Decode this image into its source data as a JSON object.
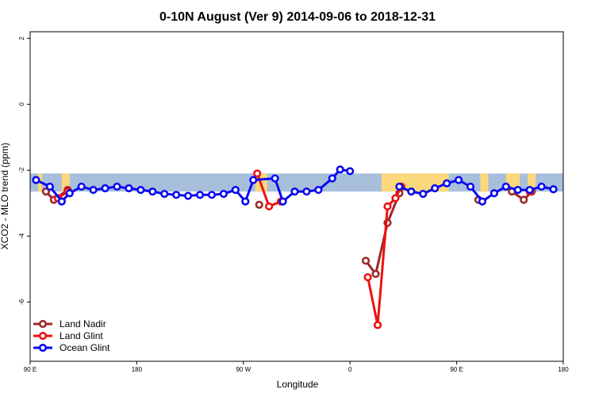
{
  "chart_data": {
    "type": "line",
    "title": "0-10N August (Ver 9)   2014-09-06 to 2018-12-31",
    "xlabel": "Longitude",
    "ylabel": "XCO2 - MLO trend (ppm)",
    "xlim": [
      -90,
      180
    ],
    "ylim": [
      -7.8,
      2.2
    ],
    "x_ticks": [
      {
        "value": -90,
        "label": "90 E"
      },
      {
        "value": -36,
        "label": "180"
      },
      {
        "value": 18,
        "label": "90 W"
      },
      {
        "value": 72,
        "label": "0"
      },
      {
        "value": 126,
        "label": "90 E"
      },
      {
        "value": 180,
        "label": "180"
      }
    ],
    "y_ticks": [
      {
        "value": 2,
        "label": "2"
      },
      {
        "value": 0,
        "label": "0"
      },
      {
        "value": -2,
        "label": "-2"
      },
      {
        "value": -4,
        "label": "-4"
      },
      {
        "value": -6,
        "label": "-6"
      }
    ],
    "band": {
      "y_range": [
        -2.65,
        -2.1
      ],
      "ocean_color": "#a8bfdc",
      "land_color": "#fcd87c"
    },
    "land_spans": [
      [
        -86,
        -84
      ],
      [
        -74,
        -70
      ],
      [
        24,
        30
      ],
      [
        88,
        122
      ],
      [
        138,
        142
      ],
      [
        151,
        158
      ],
      [
        162,
        166
      ]
    ],
    "legend_position": "bottom-left",
    "series": [
      {
        "name": "Land Nadir",
        "color": "#9b2a2a",
        "segments": [
          [
            [
              -82,
              -2.65
            ],
            [
              -78,
              -2.9
            ],
            [
              -71,
              -2.6
            ]
          ],
          [
            [
              26,
              -3.05
            ]
          ],
          [
            [
              80,
              -4.75
            ],
            [
              85,
              -5.15
            ],
            [
              91,
              -3.6
            ],
            [
              97,
              -2.7
            ]
          ],
          [
            [
              137,
              -2.9
            ]
          ],
          [
            [
              154,
              -2.65
            ],
            [
              160,
              -2.9
            ],
            [
              164,
              -2.65
            ]
          ]
        ]
      },
      {
        "name": "Land Glint",
        "color": "#ee1111",
        "segments": [
          [
            [
              -76,
              -2.85
            ],
            [
              -71,
              -2.65
            ]
          ],
          [
            [
              25,
              -2.1
            ],
            [
              31,
              -3.1
            ],
            [
              37,
              -2.95
            ]
          ],
          [
            [
              81,
              -5.25
            ],
            [
              86,
              -6.7
            ],
            [
              91,
              -3.1
            ],
            [
              95,
              -2.85
            ],
            [
              98,
              -2.5
            ]
          ],
          [
            [
              163,
              -2.65
            ]
          ]
        ]
      },
      {
        "name": "Ocean Glint",
        "color": "#0a0af0",
        "segments": [
          [
            [
              -87,
              -2.3
            ],
            [
              -80,
              -2.5
            ],
            [
              -74,
              -2.95
            ],
            [
              -70,
              -2.7
            ],
            [
              -64,
              -2.5
            ],
            [
              -58,
              -2.6
            ],
            [
              -52,
              -2.55
            ],
            [
              -46,
              -2.5
            ],
            [
              -40,
              -2.55
            ],
            [
              -34,
              -2.6
            ],
            [
              -28,
              -2.65
            ],
            [
              -22,
              -2.72
            ],
            [
              -16,
              -2.75
            ],
            [
              -10,
              -2.78
            ],
            [
              -4,
              -2.75
            ],
            [
              2,
              -2.75
            ],
            [
              8,
              -2.72
            ],
            [
              14,
              -2.6
            ],
            [
              19,
              -2.95
            ],
            [
              23,
              -2.3
            ],
            [
              34,
              -2.25
            ],
            [
              38,
              -2.95
            ],
            [
              44,
              -2.65
            ],
            [
              50,
              -2.65
            ],
            [
              56,
              -2.6
            ],
            [
              63,
              -2.25
            ],
            [
              67,
              -1.98
            ],
            [
              72,
              -2.03
            ]
          ],
          [
            [
              97,
              -2.5
            ],
            [
              103,
              -2.65
            ],
            [
              109,
              -2.72
            ],
            [
              115,
              -2.55
            ],
            [
              121,
              -2.4
            ],
            [
              127,
              -2.3
            ],
            [
              133,
              -2.5
            ],
            [
              139,
              -2.95
            ],
            [
              145,
              -2.7
            ],
            [
              151,
              -2.5
            ],
            [
              157,
              -2.6
            ],
            [
              163,
              -2.6
            ],
            [
              169,
              -2.5
            ],
            [
              175,
              -2.58
            ]
          ]
        ]
      }
    ]
  }
}
